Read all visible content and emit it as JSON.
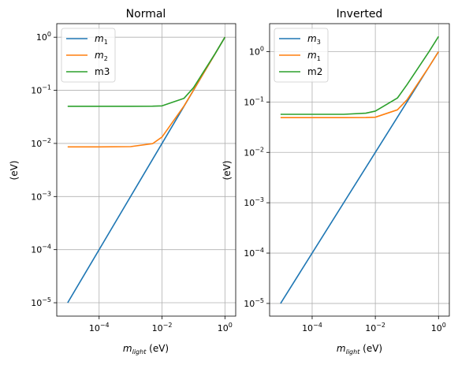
{
  "figure": {
    "background": "#ffffff"
  },
  "chart_data": [
    {
      "type": "line",
      "title": "Normal",
      "xlabel": "m_light (eV)",
      "ylabel": "(eV)",
      "xscale": "log",
      "yscale": "log",
      "xlim": [
        4.5e-06,
        2.2
      ],
      "ylim": [
        5.6e-06,
        1.8
      ],
      "xticks": [
        {
          "base": "10",
          "exp": "−4",
          "value": 0.0001
        },
        {
          "base": "10",
          "exp": "−2",
          "value": 0.01
        },
        {
          "base": "10",
          "exp": "0",
          "value": 1
        }
      ],
      "yticks": [
        {
          "base": "10",
          "exp": "−5",
          "value": 1e-05
        },
        {
          "base": "10",
          "exp": "−4",
          "value": 0.0001
        },
        {
          "base": "10",
          "exp": "−3",
          "value": 0.001
        },
        {
          "base": "10",
          "exp": "−2",
          "value": 0.01
        },
        {
          "base": "10",
          "exp": "−1",
          "value": 0.1
        },
        {
          "base": "10",
          "exp": "0",
          "value": 1
        }
      ],
      "grid": true,
      "legend_position": "top-left",
      "series": [
        {
          "name": "m1",
          "label_base": "m",
          "label_sub": "1",
          "label_style": "math",
          "color": "#1f77b4",
          "x": [
            1e-05,
            0.0001,
            0.001,
            0.005,
            0.01,
            0.05,
            0.1,
            0.5,
            1
          ],
          "y": [
            1e-05,
            0.0001,
            0.001,
            0.005,
            0.01,
            0.05,
            0.1,
            0.5,
            1
          ]
        },
        {
          "name": "m2",
          "label_base": "m",
          "label_sub": "2",
          "label_style": "math",
          "color": "#ff7f0e",
          "x": [
            1e-05,
            0.0001,
            0.001,
            0.005,
            0.01,
            0.05,
            0.1,
            0.5,
            1
          ],
          "y": [
            0.0086,
            0.0086,
            0.0087,
            0.0099,
            0.0132,
            0.0507,
            0.1004,
            0.5001,
            1.0
          ]
        },
        {
          "name": "m3",
          "label_base": "m3",
          "label_sub": "",
          "label_style": "plain",
          "color": "#2ca02c",
          "x": [
            1e-05,
            0.0001,
            0.001,
            0.005,
            0.01,
            0.05,
            0.1,
            0.5,
            1
          ],
          "y": [
            0.05,
            0.05,
            0.05,
            0.0503,
            0.051,
            0.0707,
            0.1118,
            0.5025,
            1.0012
          ]
        }
      ]
    },
    {
      "type": "line",
      "title": "Inverted",
      "xlabel": "m_light (eV)",
      "ylabel": "(eV)",
      "xscale": "log",
      "yscale": "log",
      "xlim": [
        4.5e-06,
        2.2
      ],
      "ylim": [
        5.6e-06,
        3.6
      ],
      "xticks": [
        {
          "base": "10",
          "exp": "−4",
          "value": 0.0001
        },
        {
          "base": "10",
          "exp": "−2",
          "value": 0.01
        },
        {
          "base": "10",
          "exp": "0",
          "value": 1
        }
      ],
      "yticks": [
        {
          "base": "10",
          "exp": "−5",
          "value": 1e-05
        },
        {
          "base": "10",
          "exp": "−4",
          "value": 0.0001
        },
        {
          "base": "10",
          "exp": "−3",
          "value": 0.001
        },
        {
          "base": "10",
          "exp": "−2",
          "value": 0.01
        },
        {
          "base": "10",
          "exp": "−1",
          "value": 0.1
        },
        {
          "base": "10",
          "exp": "0",
          "value": 1
        }
      ],
      "grid": true,
      "legend_position": "top-left",
      "series": [
        {
          "name": "m3",
          "label_base": "m",
          "label_sub": "3",
          "label_style": "math",
          "color": "#1f77b4",
          "x": [
            1e-05,
            0.0001,
            0.001,
            0.005,
            0.01,
            0.05,
            0.1,
            0.5,
            1
          ],
          "y": [
            1e-05,
            0.0001,
            0.001,
            0.005,
            0.01,
            0.05,
            0.1,
            0.5,
            1
          ]
        },
        {
          "name": "m1",
          "label_base": "m",
          "label_sub": "1",
          "label_style": "math",
          "color": "#ff7f0e",
          "x": [
            1e-05,
            0.0001,
            0.001,
            0.005,
            0.01,
            0.05,
            0.1,
            0.5,
            1
          ],
          "y": [
            0.049,
            0.049,
            0.049,
            0.0492,
            0.0499,
            0.07,
            0.11,
            0.5,
            1.0
          ]
        },
        {
          "name": "m2",
          "label_base": "m2",
          "label_sub": "",
          "label_style": "plain",
          "color": "#2ca02c",
          "x": [
            1e-05,
            0.0001,
            0.001,
            0.005,
            0.01,
            0.05,
            0.1,
            0.5,
            1
          ],
          "y": [
            0.057,
            0.057,
            0.057,
            0.06,
            0.066,
            0.12,
            0.22,
            1.0,
            2.0
          ]
        }
      ]
    }
  ]
}
